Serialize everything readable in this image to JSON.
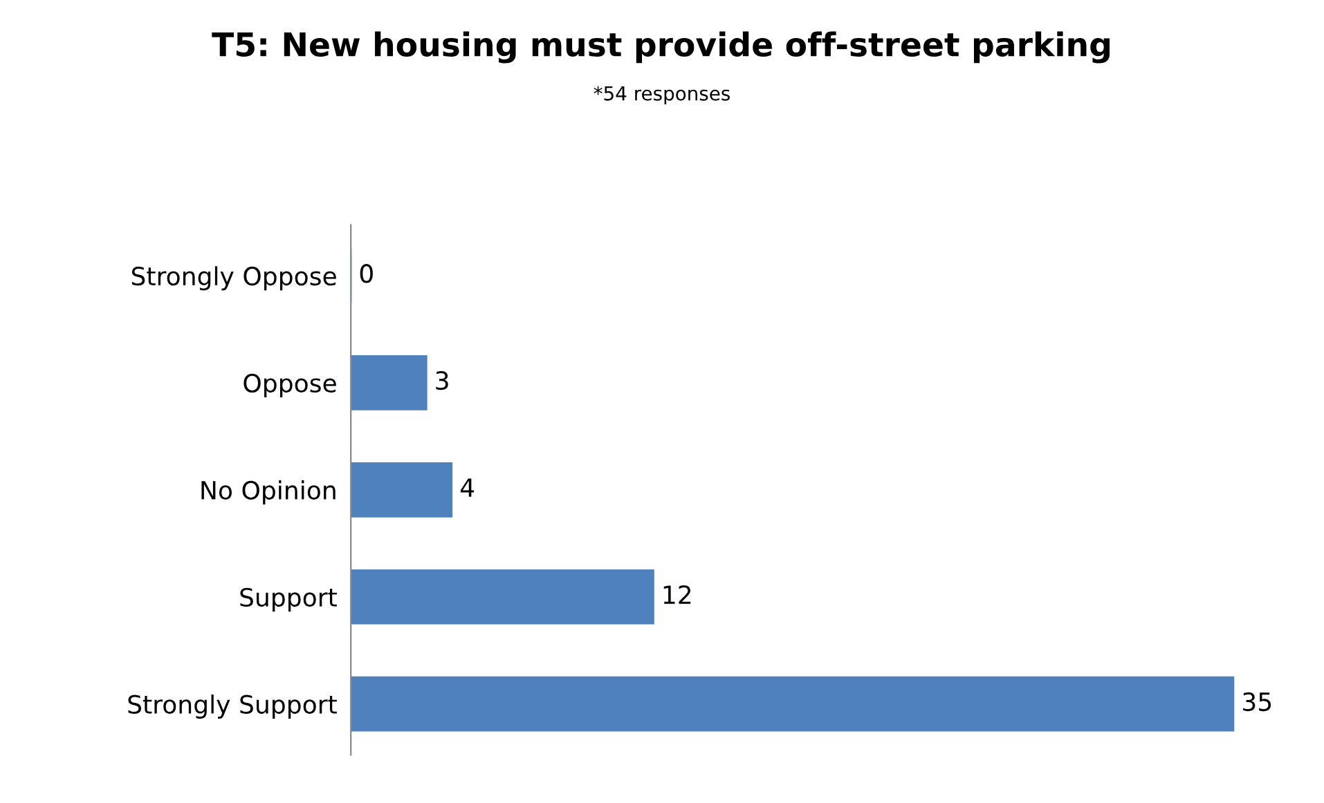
{
  "chart_data": {
    "type": "bar",
    "orientation": "horizontal",
    "title": "T5: New housing must provide off-street parking",
    "subtitle": "*54 responses",
    "categories": [
      "Strongly Oppose",
      "Oppose",
      "No Opinion",
      "Support",
      "Strongly Support"
    ],
    "values": [
      0,
      3,
      4,
      12,
      35
    ],
    "color": "#4f81bd",
    "data_labels": true,
    "tick_labels": "y",
    "grid": false,
    "legend": false
  }
}
